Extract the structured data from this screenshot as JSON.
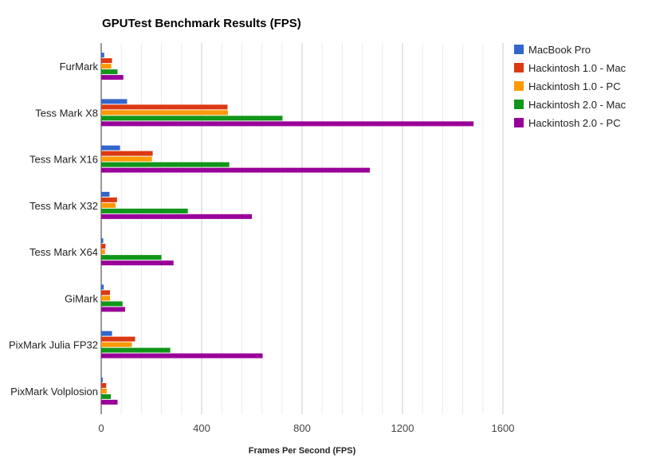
{
  "chart_data": {
    "type": "bar",
    "orientation": "horizontal",
    "title": "GPUTest Benchmark Results (FPS)",
    "xlabel": "Frames Per Second (FPS)",
    "ylabel": "",
    "xlim": [
      0,
      1600
    ],
    "ticks": [
      "0",
      "400",
      "800",
      "1200",
      "1600"
    ],
    "tick_values": [
      0,
      400,
      800,
      1200,
      1600
    ],
    "minor_step": 80,
    "grid": true,
    "legend_position": "right",
    "categories": [
      "FurMark",
      "Tess Mark X8",
      "Tess Mark X16",
      "Tess Mark X32",
      "Tess Mark X64",
      "GiMark",
      "PixMark Julia FP32",
      "PixMark Volplosion"
    ],
    "series": [
      {
        "name": "MacBook Pro",
        "color": "#3366cc",
        "values": [
          12,
          103,
          75,
          33,
          8,
          10,
          43,
          6
        ]
      },
      {
        "name": "Hackintosh 1.0 - Mac",
        "color": "#dc3912",
        "values": [
          43,
          503,
          205,
          63,
          17,
          35,
          135,
          20
        ]
      },
      {
        "name": "Hackintosh 1.0 - PC",
        "color": "#ff9900",
        "values": [
          40,
          505,
          202,
          57,
          15,
          35,
          122,
          22
        ]
      },
      {
        "name": "Hackintosh 2.0 - Mac",
        "color": "#109618",
        "values": [
          65,
          722,
          510,
          345,
          240,
          85,
          275,
          38
        ]
      },
      {
        "name": "Hackintosh 2.0 - PC",
        "color": "#990099",
        "values": [
          88,
          1483,
          1070,
          600,
          288,
          95,
          643,
          65
        ]
      }
    ]
  }
}
